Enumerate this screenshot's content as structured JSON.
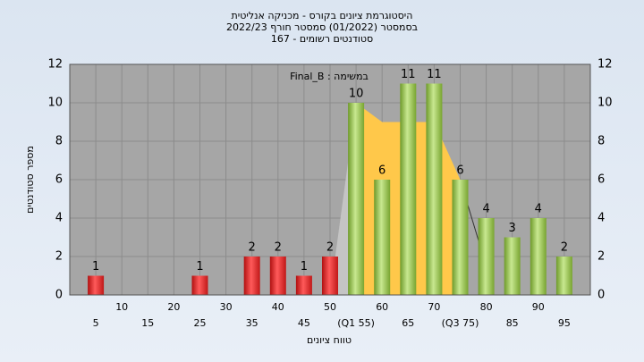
{
  "chart_data": {
    "type": "histogram",
    "title": [
      "היסטוגרמת ציונים בקורס - מכניקה אנליטית",
      "בסמסטר  (01/2022)  סמסטר חורף  2022/23",
      "סטודנטים רשומים - 167"
    ],
    "annotation": "Final_B : במשימה",
    "xlabel": "טווח ציונים",
    "ylabel": "מספר סטודנטים",
    "x": [
      5,
      25,
      35,
      40,
      45,
      50,
      55,
      60,
      65,
      70,
      75,
      80,
      85,
      90,
      95
    ],
    "values": [
      1,
      1,
      2,
      2,
      1,
      2,
      10,
      6,
      11,
      11,
      6,
      4,
      3,
      4,
      2
    ],
    "colors": [
      "red",
      "red",
      "red",
      "red",
      "red",
      "red",
      "green",
      "green",
      "green",
      "green",
      "green",
      "green",
      "green",
      "green",
      "green"
    ],
    "shade": {
      "x": [
        50,
        55,
        60,
        65,
        70,
        75,
        80
      ],
      "values": [
        0,
        10,
        9,
        9,
        9,
        6,
        1.5
      ]
    },
    "xlim": [
      0,
      100
    ],
    "xticks": [
      5,
      10,
      15,
      20,
      25,
      30,
      35,
      40,
      45,
      50,
      {
        "value": 55,
        "label": "(Q1 55)"
      },
      60,
      65,
      70,
      {
        "value": 75,
        "label": "(Q3 75)"
      },
      80,
      85,
      90,
      95
    ],
    "ylim": [
      0,
      12
    ],
    "yticks": [
      0,
      2,
      4,
      6,
      8,
      10,
      12
    ],
    "grid": true
  }
}
